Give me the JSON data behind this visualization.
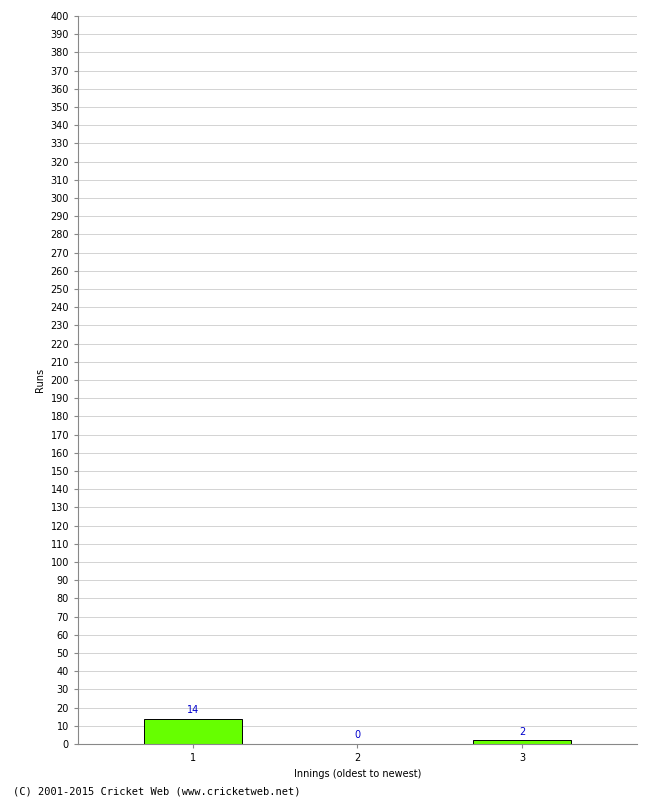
{
  "title": "",
  "xlabel": "Innings (oldest to newest)",
  "ylabel": "Runs",
  "categories": [
    1,
    2,
    3
  ],
  "values": [
    14,
    0,
    2
  ],
  "bar_color": "#66ff00",
  "bar_edge_color": "#000000",
  "label_color": "#0000cc",
  "ylim": [
    0,
    400
  ],
  "ytick_step": 10,
  "background_color": "#ffffff",
  "footer": "(C) 2001-2015 Cricket Web (www.cricketweb.net)",
  "grid_color": "#cccccc",
  "tick_fontsize": 7,
  "label_fontsize": 7,
  "footer_fontsize": 7.5,
  "bar_width": 0.6
}
